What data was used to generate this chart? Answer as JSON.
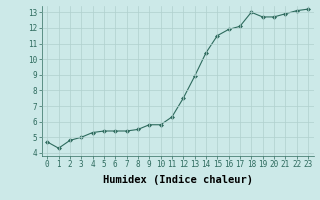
{
  "x": [
    0,
    1,
    2,
    3,
    4,
    5,
    6,
    7,
    8,
    9,
    10,
    11,
    12,
    13,
    14,
    15,
    16,
    17,
    18,
    19,
    20,
    21,
    22,
    23
  ],
  "y": [
    4.7,
    4.3,
    4.8,
    5.0,
    5.3,
    5.4,
    5.4,
    5.4,
    5.5,
    5.8,
    5.8,
    6.3,
    7.5,
    8.9,
    10.4,
    11.5,
    11.9,
    12.1,
    13.0,
    12.7,
    12.7,
    12.9,
    13.1,
    13.2
  ],
  "xlabel": "Humidex (Indice chaleur)",
  "ylim": [
    3.8,
    13.4
  ],
  "xlim": [
    -0.5,
    23.5
  ],
  "yticks": [
    4,
    5,
    6,
    7,
    8,
    9,
    10,
    11,
    12,
    13
  ],
  "xticks": [
    0,
    1,
    2,
    3,
    4,
    5,
    6,
    7,
    8,
    9,
    10,
    11,
    12,
    13,
    14,
    15,
    16,
    17,
    18,
    19,
    20,
    21,
    22,
    23
  ],
  "line_color": "#2e6b5e",
  "marker": "D",
  "marker_size": 2,
  "bg_color": "#cce9e8",
  "grid_color": "#b0d0ce",
  "tick_label_fontsize": 5.5,
  "xlabel_fontsize": 7.5
}
